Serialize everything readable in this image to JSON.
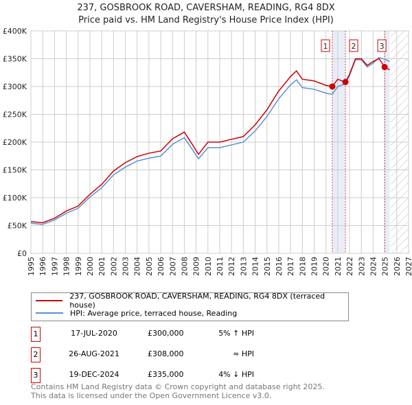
{
  "title": "237, GOSBROOK ROAD, CAVERSHAM, READING, RG4 8DX",
  "subtitle": "Price paid vs. HM Land Registry's House Price Index (HPI)",
  "chart_data": {
    "type": "line",
    "xlim": [
      1995,
      2027
    ],
    "ylim": [
      0,
      400000
    ],
    "x_ticks": [
      "1995",
      "1996",
      "1997",
      "1998",
      "1999",
      "2000",
      "2001",
      "2002",
      "2003",
      "2004",
      "2005",
      "2006",
      "2007",
      "2008",
      "2009",
      "2010",
      "2011",
      "2012",
      "2013",
      "2014",
      "2015",
      "2016",
      "2017",
      "2018",
      "2019",
      "2020",
      "2021",
      "2022",
      "2023",
      "2024",
      "2025",
      "2026",
      "2027"
    ],
    "y_ticks": [
      "£0",
      "£50K",
      "£100K",
      "£150K",
      "£200K",
      "£250K",
      "£300K",
      "£350K",
      "£400K"
    ],
    "y_tick_values": [
      0,
      50000,
      100000,
      150000,
      200000,
      250000,
      300000,
      350000,
      400000
    ],
    "series": [
      {
        "name": "237, GOSBROOK ROAD, CAVERSHAM, READING, RG4 8DX (terraced house)",
        "color": "#cc0000",
        "x": [
          1995,
          1996,
          1997,
          1998,
          1999,
          2000,
          2001,
          2002,
          2003,
          2004,
          2005,
          2006,
          2007,
          2008,
          2008.7,
          2009.2,
          2010,
          2011,
          2012,
          2013,
          2014,
          2015,
          2016,
          2017,
          2017.5,
          2018,
          2019,
          2020,
          2020.54,
          2021,
          2021.65,
          2022,
          2022.5,
          2023,
          2023.5,
          2024,
          2024.5,
          2024.97,
          2025.4
        ],
        "y": [
          57000,
          55000,
          63000,
          76000,
          85000,
          106000,
          124000,
          148000,
          163000,
          174000,
          180000,
          184000,
          206000,
          218000,
          195000,
          178000,
          200000,
          200000,
          205000,
          210000,
          231000,
          258000,
          292000,
          318000,
          328000,
          313000,
          310000,
          302000,
          300000,
          313000,
          308000,
          322000,
          350000,
          350000,
          338000,
          345000,
          350000,
          335000,
          330000
        ]
      },
      {
        "name": "HPI: Average price, terraced house, Reading",
        "color": "#5b8fd0",
        "x": [
          1995,
          1996,
          1997,
          1998,
          1999,
          2000,
          2001,
          2002,
          2003,
          2004,
          2005,
          2006,
          2007,
          2008,
          2008.7,
          2009.2,
          2010,
          2011,
          2012,
          2013,
          2014,
          2015,
          2016,
          2017,
          2017.5,
          2018,
          2019,
          2020,
          2020.54,
          2021,
          2021.65,
          2022,
          2022.5,
          2023,
          2023.5,
          2024,
          2024.5,
          2024.97,
          2025.4
        ],
        "y": [
          54000,
          52000,
          60000,
          72000,
          81000,
          101000,
          118000,
          141000,
          155000,
          166000,
          171000,
          175000,
          196000,
          208000,
          186000,
          170000,
          190000,
          190000,
          195000,
          200000,
          220000,
          246000,
          278000,
          303000,
          312000,
          298000,
          295000,
          288000,
          286000,
          300000,
          305000,
          320000,
          348000,
          348000,
          335000,
          342000,
          352000,
          349000,
          345000
        ]
      }
    ],
    "sales": [
      {
        "label": "1",
        "x": 2020.54,
        "price": 300000
      },
      {
        "label": "2",
        "x": 2021.65,
        "price": 308000
      },
      {
        "label": "3",
        "x": 2024.97,
        "price": 335000
      }
    ],
    "data_end": 2025.4
  },
  "legend": {
    "red": "237, GOSBROOK ROAD, CAVERSHAM, READING, RG4 8DX (terraced house)",
    "blue": "HPI: Average price, terraced house, Reading"
  },
  "transactions": [
    {
      "num": "1",
      "date": "17-JUL-2020",
      "price": "£300,000",
      "rel": "5% ↑ HPI"
    },
    {
      "num": "2",
      "date": "26-AUG-2021",
      "price": "£308,000",
      "rel": "≈ HPI"
    },
    {
      "num": "3",
      "date": "19-DEC-2024",
      "price": "£335,000",
      "rel": "4% ↓ HPI"
    }
  ],
  "footer": [
    "Contains HM Land Registry data © Crown copyright and database right 2025.",
    "This data is licensed under the Open Government Licence v3.0."
  ]
}
